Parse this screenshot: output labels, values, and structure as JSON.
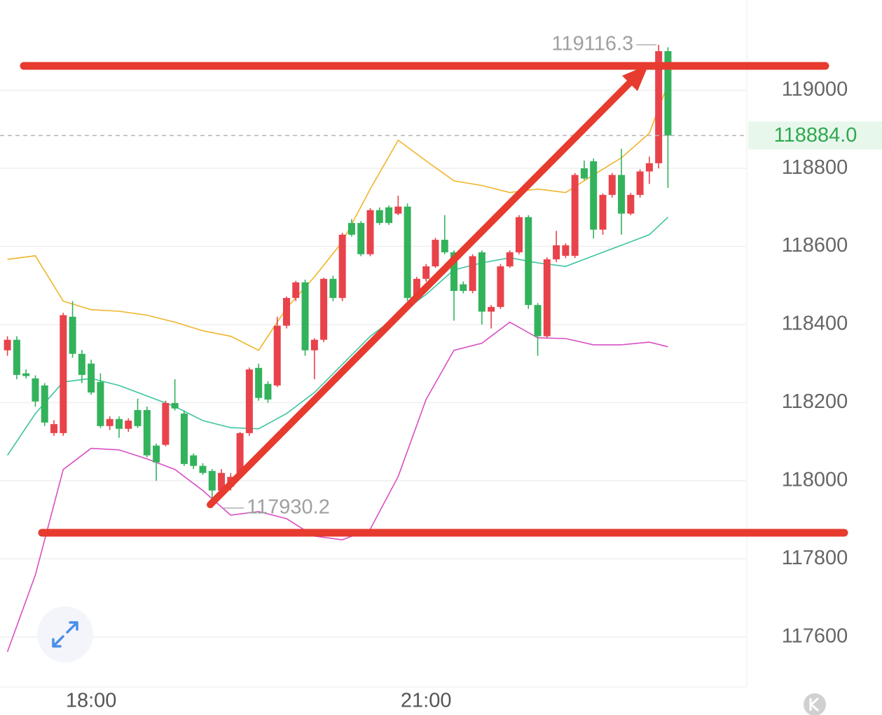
{
  "chart_data": {
    "type": "candlestick",
    "up_color": "#e8434b",
    "down_color": "#33b25c",
    "x": [
      1035,
      1040,
      1045,
      1050,
      1055,
      1060,
      1065,
      1070,
      1075,
      1080,
      1085,
      1090,
      1095,
      1100,
      1105,
      1110,
      1115,
      1120,
      1125,
      1130,
      1135,
      1140,
      1145,
      1150,
      1155,
      1160,
      1165,
      1170,
      1175,
      1180,
      1185,
      1190,
      1195,
      1200,
      1205,
      1210,
      1215,
      1220,
      1225,
      1230,
      1235,
      1240,
      1245,
      1250,
      1255,
      1260,
      1265,
      1270,
      1275,
      1280,
      1285,
      1290,
      1295,
      1300,
      1305,
      1310,
      1315,
      1320,
      1325,
      1330,
      1335,
      1340,
      1345,
      1350,
      1355,
      1360,
      1365,
      1370,
      1375,
      1380,
      1385,
      1390
    ],
    "open": [
      118334,
      118361,
      118275,
      118262,
      118244,
      118122,
      118122,
      118420,
      118325,
      118300,
      118253,
      118140,
      118158,
      118133,
      118181,
      118181,
      118090,
      118092,
      118199,
      118172,
      118065,
      118038,
      118025,
      117975,
      117985,
      118020,
      118122,
      118289,
      118248,
      118244,
      118397,
      118468,
      118508,
      118334,
      118361,
      118517,
      118468,
      118660,
      118660,
      118580,
      118693,
      118700,
      118684,
      118702,
      118468,
      118517,
      118549,
      118617,
      118585,
      118503,
      118486,
      118585,
      118433,
      118445,
      118549,
      118585,
      118675,
      118450,
      118370,
      118567,
      118576,
      118576,
      118800,
      118818,
      118643,
      118732,
      118783,
      118684,
      118732,
      118792,
      118813,
      119100
    ],
    "high": [
      118370,
      118370,
      118285,
      118270,
      118250,
      118155,
      118430,
      118460,
      118335,
      118310,
      118275,
      118165,
      118165,
      118160,
      118210,
      118190,
      118095,
      118205,
      118260,
      118180,
      118070,
      118045,
      118030,
      118030,
      118020,
      118125,
      118290,
      118300,
      118255,
      118420,
      118472,
      118512,
      118515,
      118365,
      118520,
      118525,
      118635,
      118670,
      118665,
      118698,
      118700,
      118705,
      118730,
      118710,
      118522,
      118555,
      118622,
      118680,
      118590,
      118510,
      118580,
      118590,
      118450,
      118555,
      118590,
      118680,
      118680,
      118455,
      118572,
      118640,
      118608,
      118788,
      118820,
      118825,
      118736,
      118788,
      118850,
      118737,
      118797,
      118830,
      119116.3,
      119110
    ],
    "low": [
      118320,
      118260,
      118262,
      118190,
      118140,
      118115,
      118115,
      118315,
      118250,
      118220,
      118135,
      118130,
      118110,
      118125,
      118135,
      118060,
      118000,
      118088,
      118180,
      118038,
      118030,
      118015,
      117930.2,
      117960,
      117975,
      118010,
      118115,
      118205,
      118200,
      118240,
      118390,
      118460,
      118320,
      118260,
      118355,
      118460,
      118460,
      118625,
      118575,
      118575,
      118655,
      118655,
      118680,
      118460,
      118460,
      118510,
      118545,
      118580,
      118410,
      118480,
      118480,
      118400,
      118390,
      118440,
      118545,
      118580,
      118440,
      118320,
      118365,
      118560,
      118570,
      118570,
      118770,
      118620,
      118630,
      118725,
      118630,
      118680,
      118725,
      118760,
      118800,
      118750
    ],
    "close": [
      118361,
      118271,
      118268,
      118203,
      118149,
      118145,
      118424,
      118325,
      118271,
      118226,
      118140,
      118158,
      118133,
      118154,
      118140,
      118065,
      118047,
      118199,
      118185,
      118043,
      118038,
      118020,
      117975,
      118020,
      118010,
      118122,
      118285,
      118212,
      118208,
      118397,
      118468,
      118508,
      118334,
      118361,
      118517,
      118468,
      118630,
      118630,
      118580,
      118693,
      118660,
      118660,
      118702,
      118468,
      118517,
      118549,
      118617,
      118585,
      118486,
      118486,
      118575,
      118433,
      118445,
      118549,
      118585,
      118675,
      118450,
      118370,
      118567,
      118603,
      118603,
      118783,
      118774,
      118643,
      118732,
      118783,
      118684,
      118732,
      118792,
      118813,
      119100,
      118884
    ],
    "bands": {
      "x": [
        1035,
        1050,
        1065,
        1080,
        1095,
        1110,
        1125,
        1140,
        1155,
        1170,
        1185,
        1200,
        1215,
        1230,
        1245,
        1260,
        1275,
        1290,
        1305,
        1320,
        1335,
        1350,
        1365,
        1380,
        1390
      ],
      "series": [
        {
          "color": "#f0b429",
          "values": [
            118567,
            118576,
            118460,
            118438,
            118434,
            118424,
            118406,
            118384,
            118370,
            118334,
            118442,
            118522,
            118612,
            118747,
            118872,
            118819,
            118768,
            118756,
            118738,
            118747,
            118738,
            118783,
            118827,
            118890,
            119016
          ]
        },
        {
          "color": "#3cc4a0",
          "values": [
            118065,
            118172,
            118253,
            118262,
            118244,
            118217,
            118190,
            118154,
            118136,
            118133,
            118172,
            118226,
            118298,
            118370,
            118424,
            118477,
            118540,
            118558,
            118571,
            118558,
            118549,
            118576,
            118603,
            118630,
            118675
          ]
        },
        {
          "color": "#d94fc4",
          "values": [
            117562,
            117759,
            118029,
            118083,
            118079,
            118056,
            118029,
            117975,
            117912,
            117921,
            117903,
            117858,
            117849,
            117876,
            118011,
            118208,
            118334,
            118352,
            118406,
            118366,
            118364,
            118348,
            118348,
            118355,
            118343
          ]
        }
      ]
    },
    "xlim": [
      1031,
      1432
    ],
    "xticks": [
      {
        "value": 1080,
        "label": "18:00"
      },
      {
        "value": 1260,
        "label": "21:00"
      }
    ],
    "ylim": [
      117472,
      119231
    ],
    "yticks": [
      117600,
      117800,
      118000,
      118200,
      118400,
      118600,
      118800,
      119000
    ],
    "grid": true,
    "high_marker": {
      "x": 1385,
      "value": 119116.3
    },
    "low_marker": {
      "x": 1150,
      "value": 117930.2
    },
    "last_price": {
      "value": 118884,
      "label": "118884.0"
    }
  }
}
